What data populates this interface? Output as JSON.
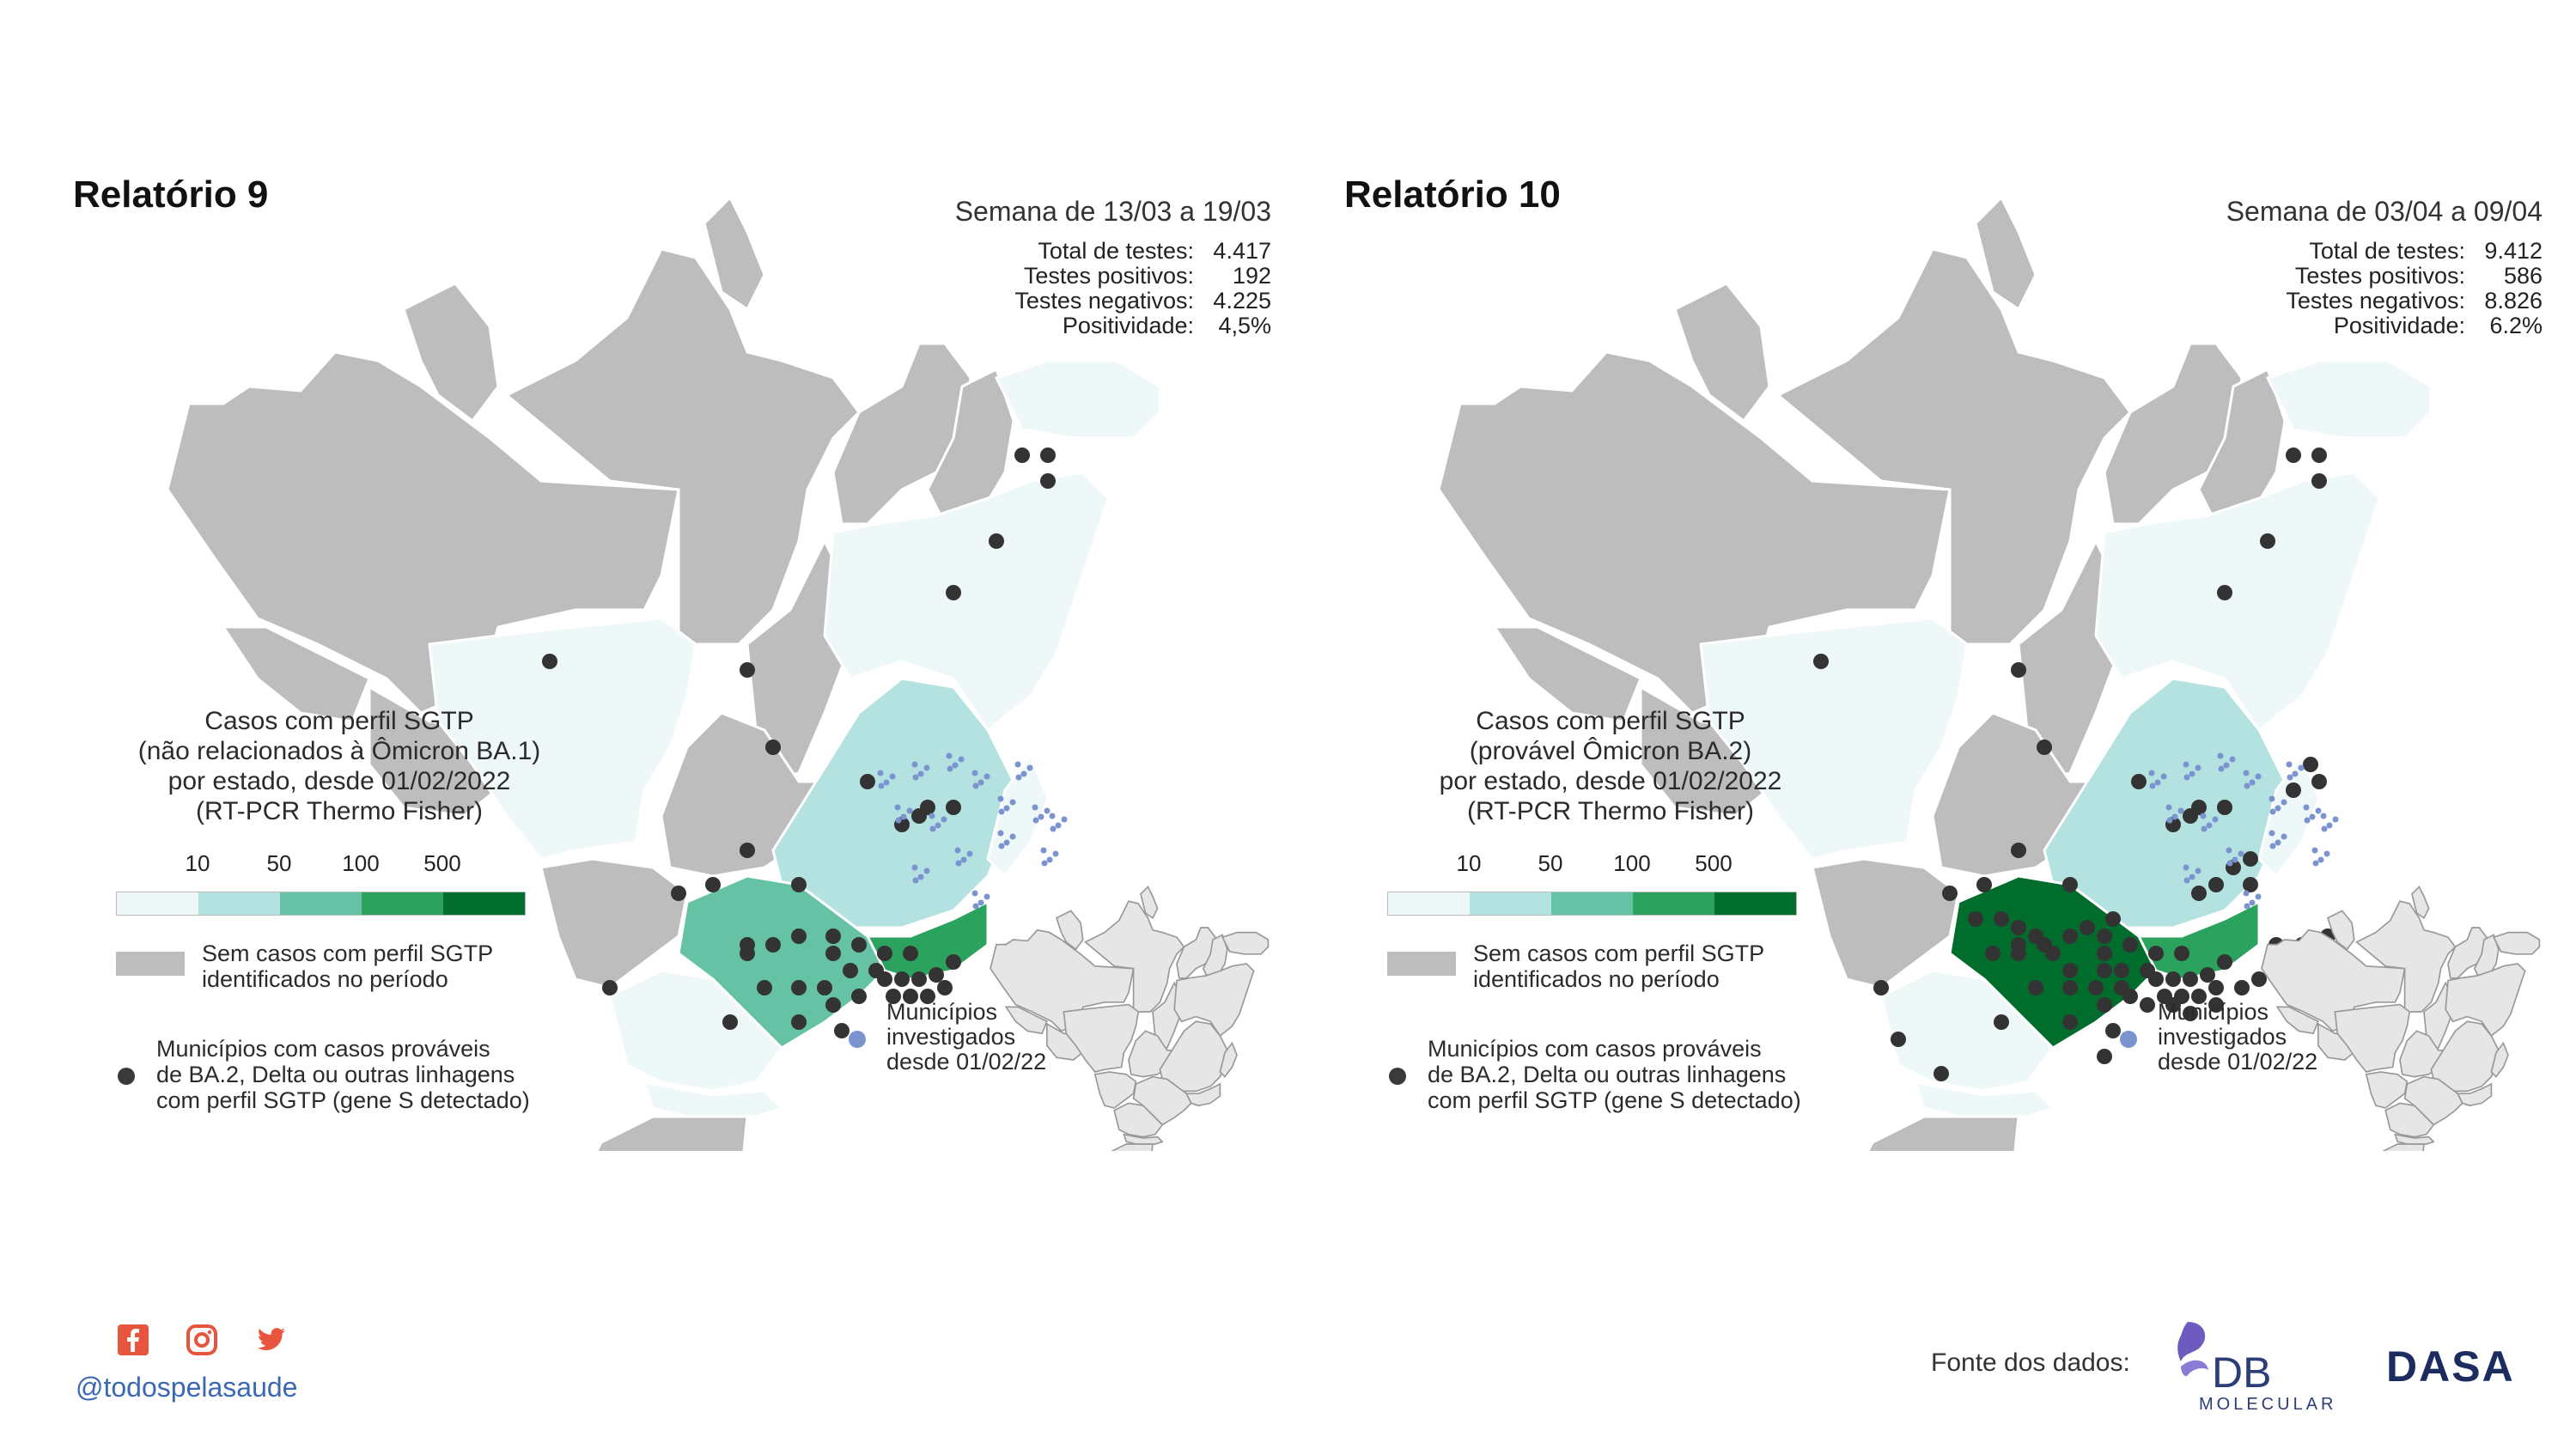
{
  "colors": {
    "grey_state": "#bdbdbd",
    "border": "#ffffff",
    "dot": "#333333",
    "investigated": "#7b93cf",
    "handle": "#3b68b4",
    "scale": [
      "#eef8f8",
      "#b3e2e1",
      "#66c2a4",
      "#2ca25f",
      "#006d2c"
    ]
  },
  "reports": [
    {
      "title": "Relatório 9",
      "week": "Semana de 13/03 a 19/03",
      "stats": [
        {
          "label": "Total de testes:",
          "value": "4.417"
        },
        {
          "label": "Testes positivos:",
          "value": "192"
        },
        {
          "label": "Testes negativos:",
          "value": "4.225"
        },
        {
          "label": "Positividade:",
          "value": "4,5%"
        }
      ],
      "legend_title": [
        "Casos com perfil SGTP",
        "(não relacionados à Ômicron BA.1)",
        "por estado, desde 01/02/2022",
        "(RT-PCR Thermo Fisher)"
      ],
      "state_levels": {
        "MT": 0,
        "BA": 0,
        "MG": 1,
        "SP": 2,
        "RJ": 3,
        "PR": 0,
        "SC": 0,
        "ES": 0,
        "NE": 0
      }
    },
    {
      "title": "Relatório 10",
      "week": "Semana de 03/04 a 09/04",
      "stats": [
        {
          "label": "Total de testes:",
          "value": "9.412"
        },
        {
          "label": "Testes positivos:",
          "value": "586"
        },
        {
          "label": "Testes negativos:",
          "value": "8.826"
        },
        {
          "label": "Positividade:",
          "value": "6.2%"
        }
      ],
      "legend_title": [
        "Casos com perfil SGTP",
        "(provável Ômicron BA.2)",
        "por estado, desde 01/02/2022",
        "(RT-PCR Thermo Fisher)"
      ],
      "state_levels": {
        "MT": 0,
        "BA": 0,
        "MG": 1,
        "SP": 4,
        "RJ": 3,
        "PR": 0,
        "SC": 0,
        "ES": 0,
        "NE": 0
      }
    }
  ],
  "legend": {
    "ticks": [
      "10",
      "50",
      "100",
      "500"
    ],
    "no_cases_line1": "Sem casos com perfil SGTP",
    "no_cases_line2": "identificados no período",
    "municipalities_line1": "Municípios com casos prováveis",
    "municipalities_line2": "de BA.2, Delta ou outras linhagens",
    "municipalities_line3": "com perfil SGTP (gene S detectado)",
    "investigated_line1": "Municípios",
    "investigated_line2": "investigados",
    "investigated_line3": "desde 01/02/22"
  },
  "footer": {
    "handle": "@todospelasaude",
    "source_label": "Fonte dos dados:",
    "logo_db": "DB",
    "logo_db_sub": "MOLECULAR",
    "logo_dasa": "DASA",
    "social_icons": [
      "facebook-icon",
      "instagram-icon",
      "twitter-icon"
    ]
  }
}
